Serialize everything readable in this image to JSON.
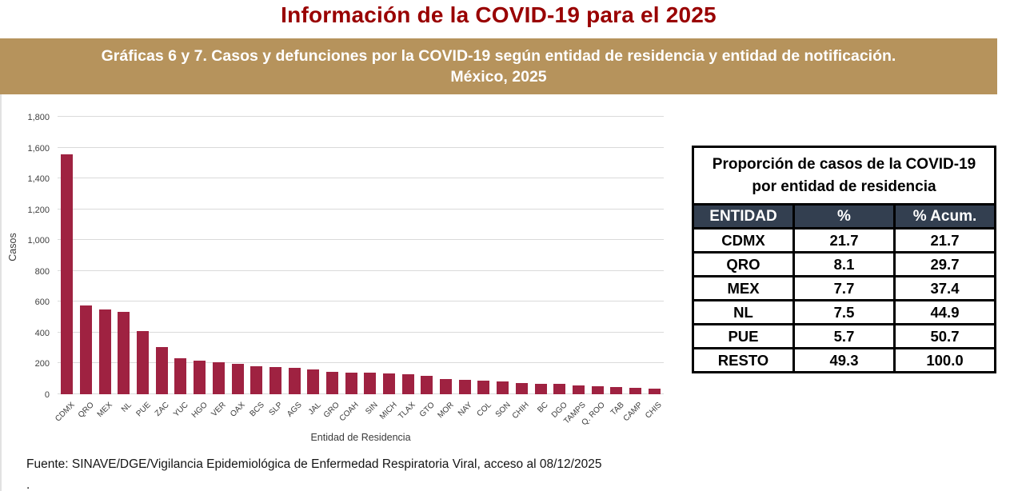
{
  "page": {
    "title": "Información de la COVID-19 para el 2025",
    "banner_line1": "Gráficas 6 y 7. Casos y defunciones por la COVID-19  según entidad de residencia y entidad de notificación.",
    "banner_line2": "México, 2025",
    "source_note": "Fuente: SINAVE/DGE/Vigilancia Epidemiológica de Enfermedad Respiratoria Viral, acceso al 08/12/2025",
    "footer_dot": "."
  },
  "colors": {
    "title_red": "#990000",
    "banner_bg": "#B6935C",
    "banner_text": "#FFFFFF",
    "bar": "#9F2241",
    "gridline": "#DADADA",
    "table_header_bg": "#333F50",
    "table_header_text": "#FFFFFF"
  },
  "chart_data": {
    "type": "bar",
    "title": "",
    "xlabel": "Entidad de Residencia",
    "ylabel": "Casos",
    "ylim": [
      0,
      1800
    ],
    "ytick_step": 200,
    "grid": true,
    "legend": false,
    "categories": [
      "CDMX",
      "QRO",
      "MEX",
      "NL",
      "PUE",
      "ZAC",
      "YUC",
      "HGO",
      "VER",
      "OAX",
      "BCS",
      "SLP",
      "AGS",
      "JAL",
      "GRO",
      "COAH",
      "SIN",
      "MICH",
      "TLAX",
      "GTO",
      "MOR",
      "NAY",
      "COL",
      "SON",
      "CHIH",
      "BC",
      "DGO",
      "TAMPS",
      "Q. ROO",
      "TAB",
      "CAMP",
      "CHIS"
    ],
    "values": [
      1555,
      578,
      549,
      534,
      410,
      308,
      231,
      218,
      209,
      199,
      184,
      177,
      171,
      163,
      146,
      142,
      139,
      135,
      128,
      120,
      98,
      96,
      88,
      84,
      74,
      68,
      65,
      58,
      50,
      49,
      40,
      36
    ]
  },
  "table": {
    "title": "Proporción de casos de la COVID-19 por entidad de residencia",
    "headers": [
      "ENTIDAD",
      "%",
      "% Acum."
    ],
    "rows": [
      [
        "CDMX",
        "21.7",
        "21.7"
      ],
      [
        "QRO",
        "8.1",
        "29.7"
      ],
      [
        "MEX",
        "7.7",
        "37.4"
      ],
      [
        "NL",
        "7.5",
        "44.9"
      ],
      [
        "PUE",
        "5.7",
        "50.7"
      ],
      [
        "RESTO",
        "49.3",
        "100.0"
      ]
    ]
  }
}
